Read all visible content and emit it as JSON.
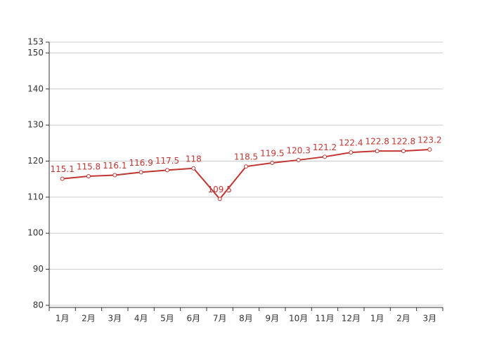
{
  "chart_data": {
    "type": "line",
    "categories": [
      "1月",
      "2月",
      "3月",
      "4月",
      "5月",
      "6月",
      "7月",
      "8月",
      "9月",
      "10月",
      "11月",
      "12月",
      "1月",
      "2月",
      "3月"
    ],
    "series": [
      {
        "color": "#c23531",
        "values": [
          115.1,
          115.8,
          116.1,
          116.9,
          117.5,
          118,
          109.5,
          118.5,
          119.5,
          120.3,
          121.2,
          122.4,
          122.8,
          122.8,
          123.2
        ]
      }
    ],
    "ylim": [
      79.4,
      153
    ],
    "yticks": [
      80,
      90,
      100,
      110,
      120,
      130,
      140,
      150,
      153
    ],
    "grid": true
  }
}
